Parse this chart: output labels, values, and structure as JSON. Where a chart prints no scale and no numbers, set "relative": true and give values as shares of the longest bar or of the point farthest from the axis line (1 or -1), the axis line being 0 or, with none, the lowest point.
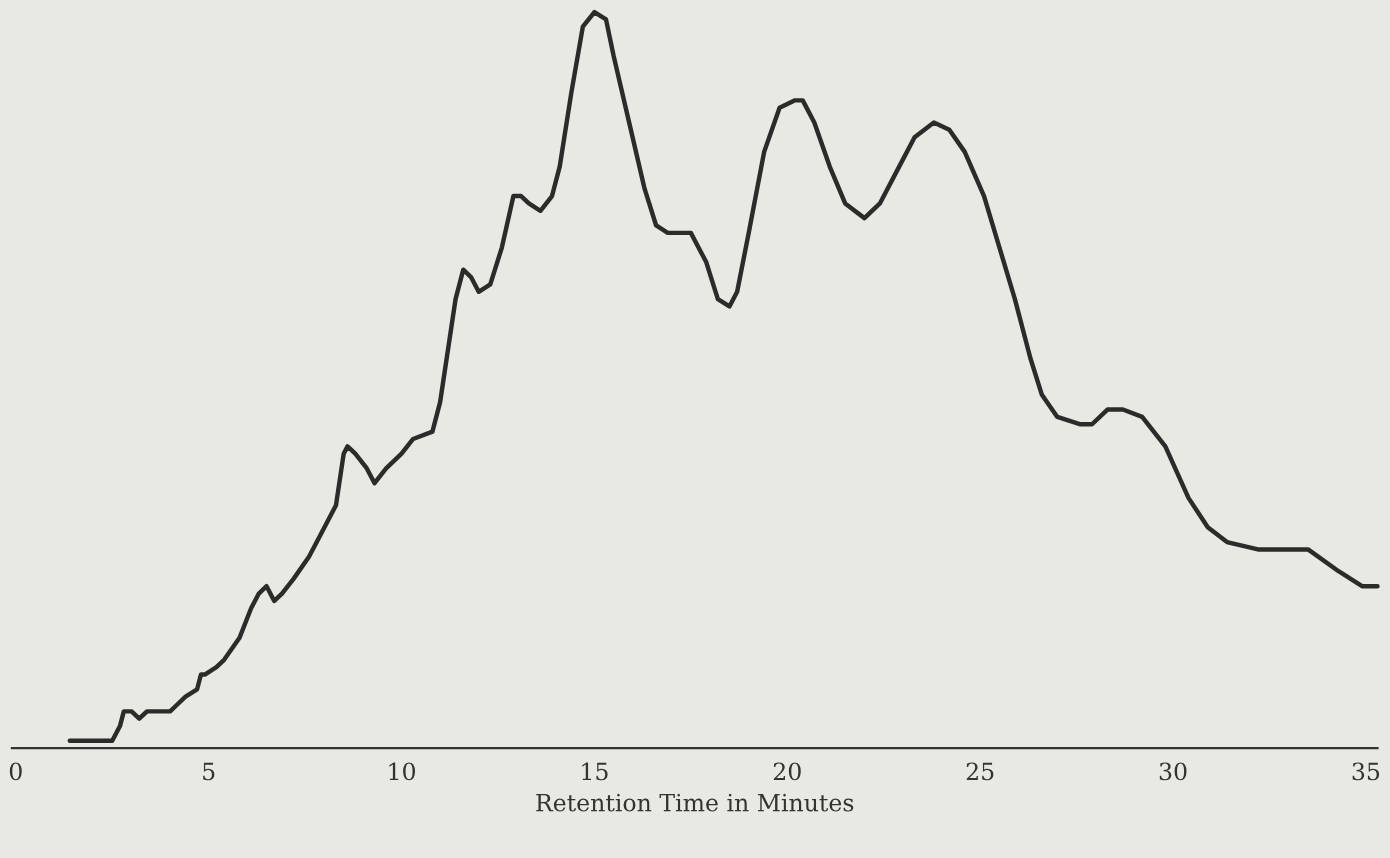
{
  "chart_data": {
    "type": "line",
    "relative": true,
    "xlabel": "Retention Time in Minutes",
    "xlim": [
      -0.1,
      35.3
    ],
    "xticks": [
      0,
      5,
      10,
      15,
      20,
      25,
      30,
      35
    ],
    "grid": false,
    "legend": false,
    "marker": "none",
    "line_style": "solid",
    "series": [
      {
        "color": "#2b2b2b",
        "x": [
          1.4,
          2.2,
          2.5,
          2.7,
          2.8,
          3.0,
          3.2,
          3.4,
          3.6,
          3.8,
          4.0,
          4.2,
          4.4,
          4.7,
          4.8,
          4.9,
          5.2,
          5.4,
          5.8,
          6.1,
          6.3,
          6.5,
          6.7,
          6.9,
          7.2,
          7.6,
          7.9,
          8.3,
          8.5,
          8.6,
          8.8,
          9.1,
          9.3,
          9.6,
          10.0,
          10.3,
          10.8,
          11.0,
          11.4,
          11.6,
          11.8,
          12.0,
          12.3,
          12.6,
          12.9,
          13.1,
          13.3,
          13.6,
          13.9,
          14.1,
          14.4,
          14.7,
          15.0,
          15.3,
          15.5,
          15.9,
          16.3,
          16.6,
          16.9,
          17.5,
          17.6,
          17.9,
          18.2,
          18.5,
          18.7,
          19.0,
          19.4,
          19.8,
          20.2,
          20.4,
          20.7,
          21.1,
          21.5,
          22.0,
          22.4,
          22.9,
          23.3,
          23.8,
          24.2,
          24.6,
          25.1,
          25.5,
          25.9,
          26.3,
          26.6,
          27.0,
          27.6,
          27.9,
          28.3,
          28.7,
          29.2,
          29.8,
          30.4,
          30.9,
          31.4,
          32.2,
          33.0,
          33.5,
          34.3,
          34.9,
          35.3
        ],
        "values": [
          0.01,
          0.01,
          0.01,
          0.03,
          0.05,
          0.05,
          0.04,
          0.05,
          0.05,
          0.05,
          0.05,
          0.06,
          0.07,
          0.08,
          0.1,
          0.1,
          0.11,
          0.12,
          0.15,
          0.19,
          0.21,
          0.22,
          0.2,
          0.21,
          0.23,
          0.26,
          0.29,
          0.33,
          0.4,
          0.41,
          0.4,
          0.38,
          0.36,
          0.38,
          0.4,
          0.42,
          0.43,
          0.47,
          0.61,
          0.65,
          0.64,
          0.62,
          0.63,
          0.68,
          0.75,
          0.75,
          0.74,
          0.73,
          0.75,
          0.79,
          0.89,
          0.98,
          1.0,
          0.99,
          0.94,
          0.85,
          0.76,
          0.71,
          0.7,
          0.7,
          0.69,
          0.66,
          0.61,
          0.6,
          0.62,
          0.7,
          0.81,
          0.87,
          0.88,
          0.88,
          0.85,
          0.79,
          0.74,
          0.72,
          0.74,
          0.79,
          0.83,
          0.85,
          0.84,
          0.81,
          0.75,
          0.68,
          0.61,
          0.53,
          0.48,
          0.45,
          0.44,
          0.44,
          0.46,
          0.46,
          0.45,
          0.41,
          0.34,
          0.3,
          0.28,
          0.27,
          0.27,
          0.27,
          0.24,
          0.22,
          0.22
        ]
      }
    ]
  }
}
